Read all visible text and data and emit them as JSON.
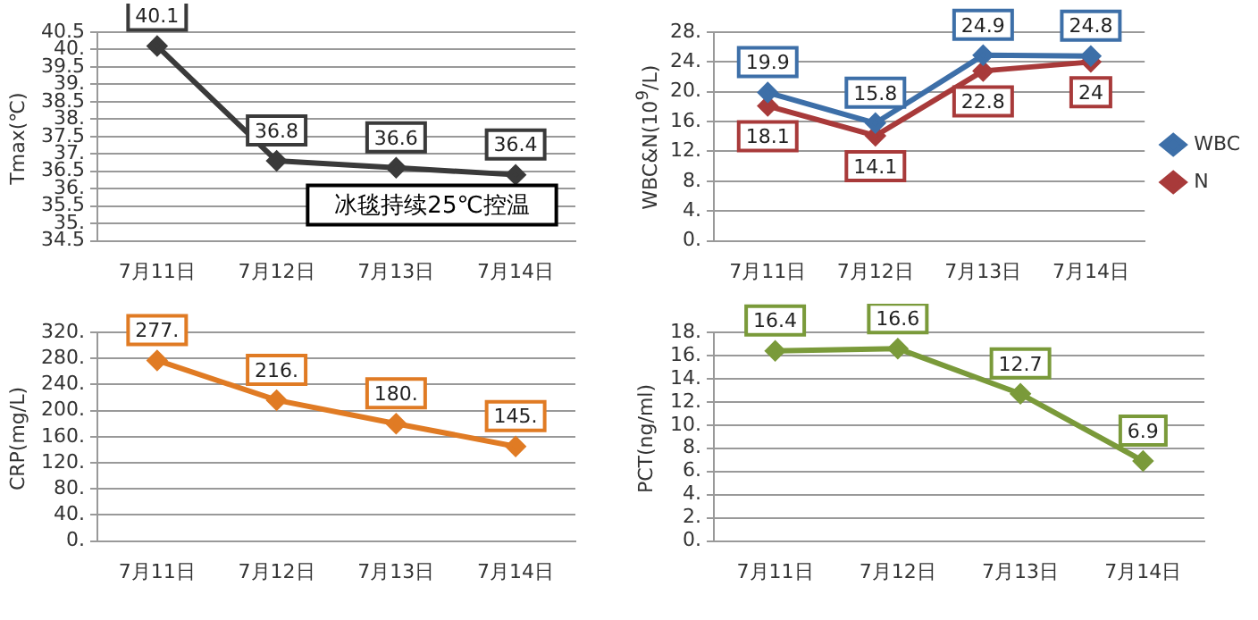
{
  "chart_data": [
    {
      "type": "line",
      "ylabel": "Tmax(℃)",
      "categories": [
        "7月11日",
        "7月12日",
        "7月13日",
        "7月14日"
      ],
      "series": [
        {
          "color": "#3a3a3a",
          "values": [
            40.1,
            36.8,
            36.6,
            36.4
          ],
          "value_labels": [
            "40.1",
            "36.8",
            "36.6",
            "36.4"
          ]
        }
      ],
      "ylim": [
        34.5,
        40.5
      ],
      "yticks": [
        "40.5",
        {
          "value": 40,
          "label": "40."
        },
        "39.5",
        {
          "value": 39,
          "label": "39."
        },
        "38.5",
        {
          "value": 38,
          "label": "38."
        },
        "37.5",
        {
          "value": 37,
          "label": "37."
        },
        "36.5",
        {
          "value": 36,
          "label": "36."
        },
        "35.5",
        {
          "value": 35,
          "label": "35."
        },
        "34.5"
      ],
      "grid": "y",
      "marker": "diamond",
      "line_style": "solid",
      "legend": false,
      "annotations": [
        "冰毯持续25℃控温"
      ]
    },
    {
      "type": "line",
      "ylabel": "WBC&N(10$^{9}$/L)",
      "categories": [
        "7月11日",
        "7月12日",
        "7月13日",
        "7月14日"
      ],
      "series": [
        {
          "name": "WBC",
          "color": "#3d6fa8",
          "values": [
            19.9,
            15.8,
            24.9,
            24.8
          ],
          "value_labels": [
            "19.9",
            "15.8",
            "24.9",
            "24.8"
          ]
        },
        {
          "name": "N",
          "color": "#a83a3a",
          "values": [
            18.1,
            14.1,
            22.8,
            24
          ],
          "value_labels": [
            "18.1",
            "14.1",
            "22.8",
            "24"
          ]
        }
      ],
      "ylim": [
        0,
        28
      ],
      "yticks": [
        {
          "value": 0,
          "label": "0."
        },
        {
          "value": 4,
          "label": "4."
        },
        {
          "value": 8,
          "label": "8."
        },
        {
          "value": 12,
          "label": "12."
        },
        {
          "value": 16,
          "label": "16."
        },
        {
          "value": 20,
          "label": "20."
        },
        {
          "value": 24,
          "label": "24."
        },
        {
          "value": 28,
          "label": "28."
        }
      ],
      "grid": "y",
      "marker": "diamond",
      "line_style": "solid",
      "legend": "right"
    },
    {
      "type": "line",
      "ylabel": "CRP(mg/L)",
      "categories": [
        "7月11日",
        "7月12日",
        "7月13日",
        "7月14日"
      ],
      "series": [
        {
          "color": "#e07b24",
          "values": [
            277,
            216,
            180,
            145
          ],
          "value_labels": [
            "277.",
            "216.",
            "180.",
            "145."
          ]
        }
      ],
      "ylim": [
        0,
        320
      ],
      "yticks": [
        {
          "value": 0,
          "label": "0."
        },
        {
          "value": 40,
          "label": "40."
        },
        {
          "value": 80,
          "label": "80."
        },
        {
          "value": 120,
          "label": "120."
        },
        {
          "value": 160,
          "label": "160."
        },
        {
          "value": 200,
          "label": "200."
        },
        {
          "value": 240,
          "label": "240."
        },
        {
          "value": 280,
          "label": "280."
        },
        {
          "value": 320,
          "label": "320."
        }
      ],
      "grid": "y",
      "marker": "diamond",
      "line_style": "solid",
      "legend": false
    },
    {
      "type": "line",
      "ylabel": "PCT(ng/ml)",
      "categories": [
        "7月11日",
        "7月12日",
        "7月13日",
        "7月14日"
      ],
      "series": [
        {
          "color": "#7a9a3a",
          "values": [
            16.4,
            16.6,
            12.7,
            6.9
          ],
          "value_labels": [
            "16.4",
            "16.6",
            "12.7",
            "6.9"
          ]
        }
      ],
      "ylim": [
        0,
        18
      ],
      "yticks": [
        {
          "value": 0,
          "label": "0."
        },
        {
          "value": 2,
          "label": "2."
        },
        {
          "value": 4,
          "label": "4."
        },
        {
          "value": 6,
          "label": "6."
        },
        {
          "value": 8,
          "label": "8."
        },
        {
          "value": 10,
          "label": "10."
        },
        {
          "value": 12,
          "label": "12."
        },
        {
          "value": 14,
          "label": "14."
        },
        {
          "value": 16,
          "label": "16."
        },
        {
          "value": 18,
          "label": "18."
        }
      ],
      "grid": "y",
      "marker": "diamond",
      "line_style": "solid",
      "legend": false
    }
  ]
}
